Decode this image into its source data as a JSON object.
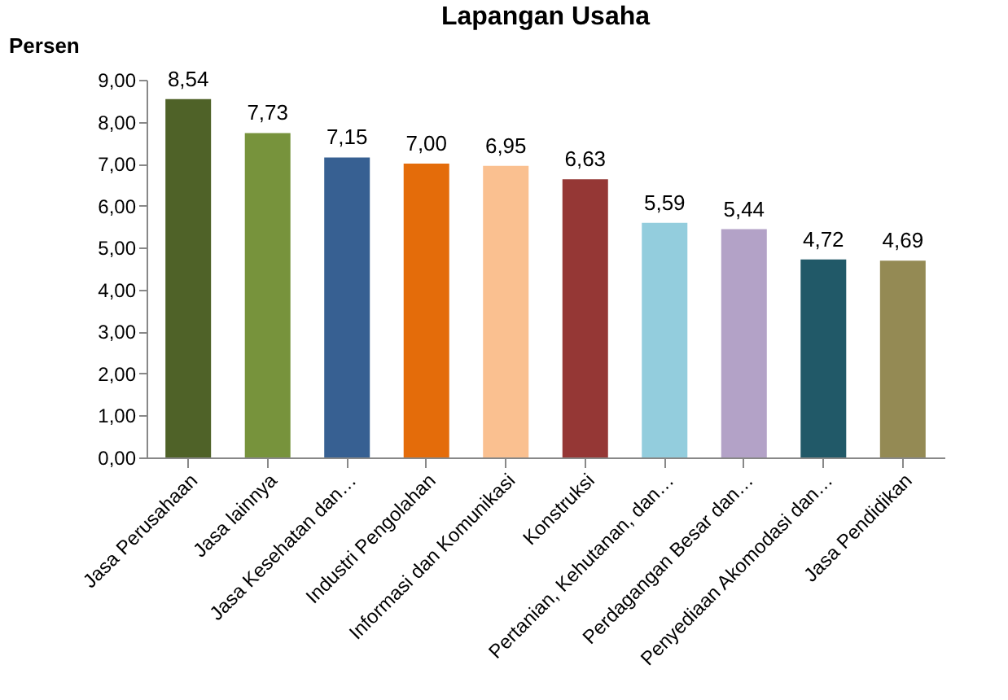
{
  "chart_data": {
    "type": "bar",
    "title": "Lapangan Usaha",
    "ylabel": "Persen",
    "categories": [
      "Jasa Perusahaan",
      "Jasa lainnya",
      "Jasa Kesehatan dan…",
      "Industri Pengolahan",
      "Informasi dan Komunikasi",
      "Konstruksi",
      "Pertanian, Kehutanan, dan…",
      "Perdagangan Besar dan…",
      "Penyediaan Akomodasi dan…",
      "Jasa Pendidikan"
    ],
    "values": [
      8.54,
      7.73,
      7.15,
      7.0,
      6.95,
      6.63,
      5.59,
      5.44,
      4.72,
      4.69
    ],
    "value_labels": [
      "8,54",
      "7,73",
      "7,15",
      "7,00",
      "6,95",
      "6,63",
      "5,59",
      "5,44",
      "4,72",
      "4,69"
    ],
    "colors": [
      "#4f6228",
      "#77933c",
      "#376092",
      "#e46c0a",
      "#fac090",
      "#953735",
      "#93cddd",
      "#b3a2c7",
      "#215968",
      "#948a54"
    ],
    "ylim": [
      0,
      9
    ],
    "yticks": [
      {
        "value": 0,
        "label": "0,00"
      },
      {
        "value": 1,
        "label": "1,00"
      },
      {
        "value": 2,
        "label": "2,00"
      },
      {
        "value": 3,
        "label": "3,00"
      },
      {
        "value": 4,
        "label": "4,00"
      },
      {
        "value": 5,
        "label": "5,00"
      },
      {
        "value": 6,
        "label": "6,00"
      },
      {
        "value": 7,
        "label": "7,00"
      },
      {
        "value": 8,
        "label": "8,00"
      },
      {
        "value": 9,
        "label": "9,00"
      }
    ],
    "grid": false,
    "legend": false
  }
}
